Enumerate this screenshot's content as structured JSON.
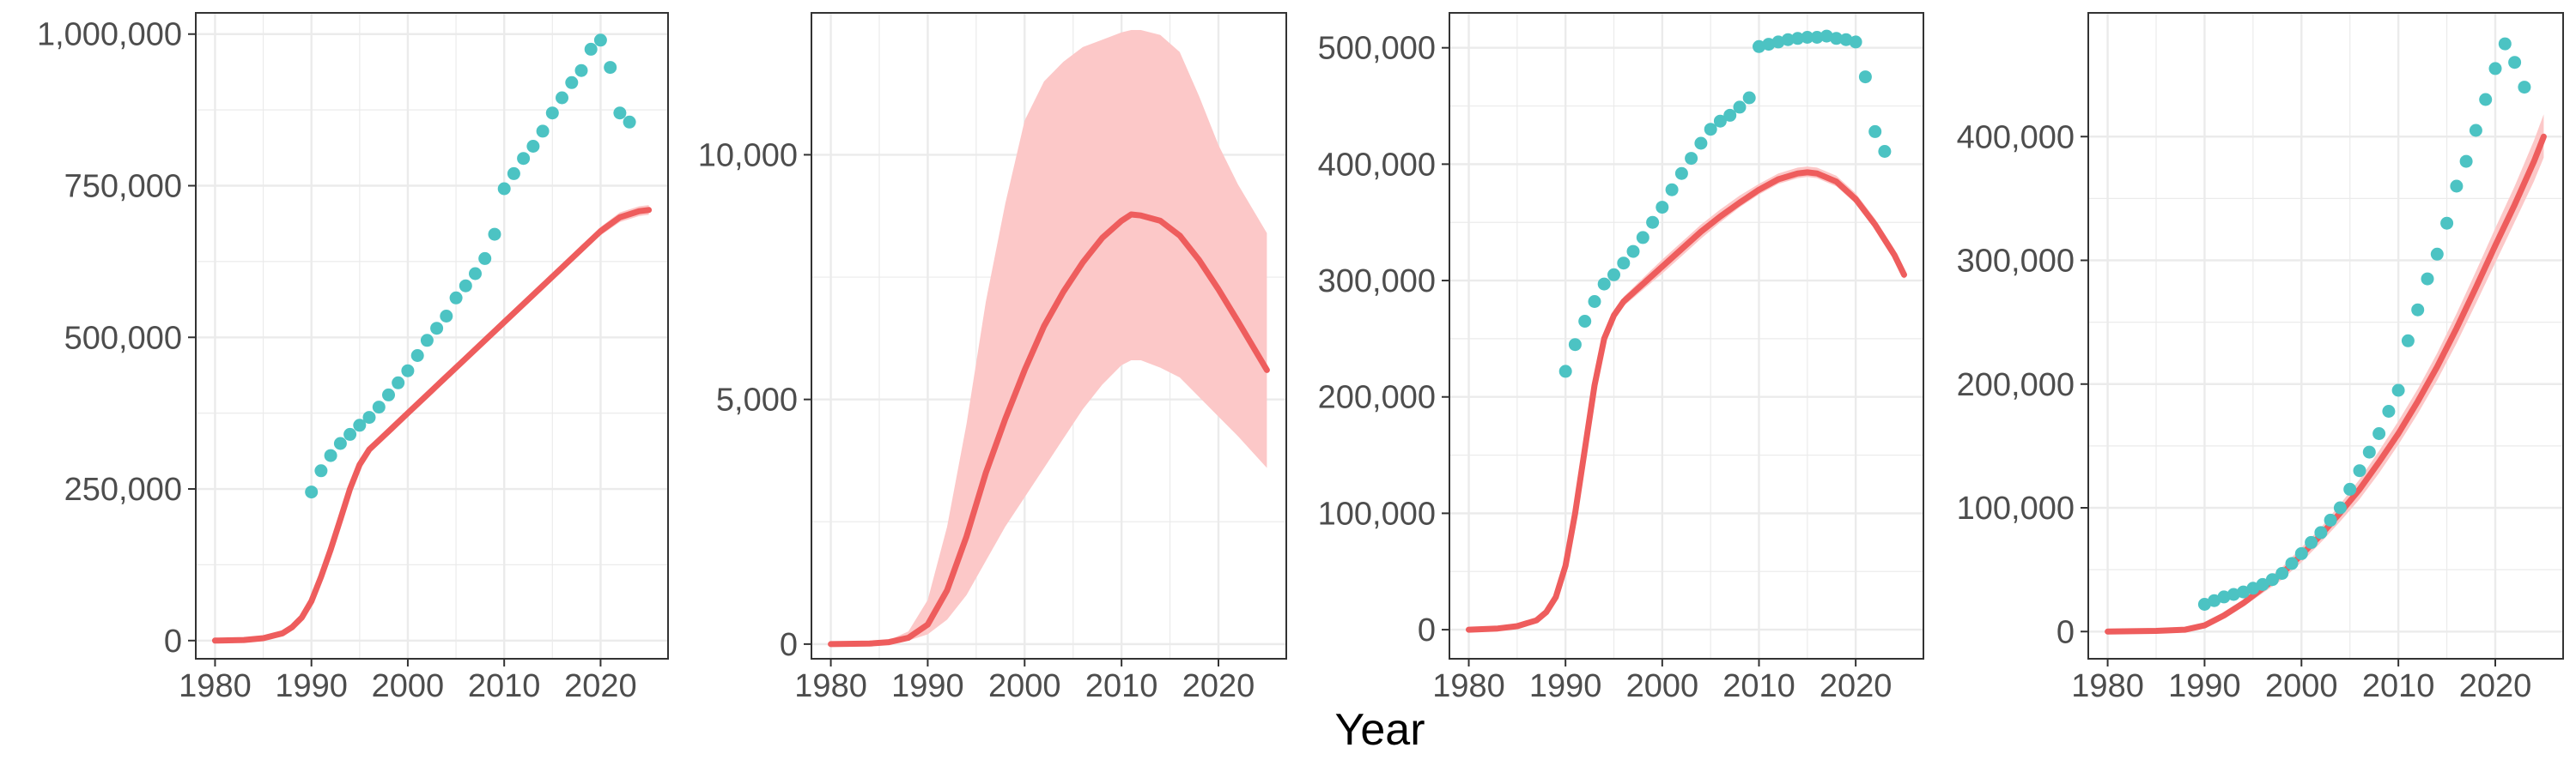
{
  "figure": {
    "xlabel": "Year",
    "colors": {
      "observed": "#4cc3c3",
      "model_line": "#ee5d5d",
      "model_band": "#fcc8c8",
      "grid": "#ebebeb",
      "frame": "#333333"
    }
  },
  "chart_data": [
    {
      "type": "line",
      "xlim": [
        1978,
        2027
      ],
      "ylim": [
        -30000,
        1035000
      ],
      "x_ticks": [
        1980,
        1990,
        2000,
        2010,
        2020
      ],
      "x_tick_labels": [
        "1980",
        "1990",
        "2000",
        "2010",
        "2020"
      ],
      "y_ticks": [
        0,
        250000,
        500000,
        750000,
        1000000
      ],
      "y_tick_labels": [
        "0",
        "250,000",
        "500,000",
        "750,000",
        "1,000,000"
      ],
      "grid": true,
      "legend": "none",
      "model": {
        "x": [
          1980,
          1983,
          1985,
          1987,
          1988,
          1989,
          1990,
          1991,
          1992,
          1993,
          1994,
          1995,
          1996,
          1997,
          1998,
          2000,
          2002,
          2004,
          2006,
          2008,
          2010,
          2012,
          2014,
          2016,
          2018,
          2020,
          2022,
          2024,
          2025
        ],
        "y": [
          0,
          1000,
          4000,
          12000,
          22000,
          38000,
          65000,
          105000,
          150000,
          200000,
          250000,
          290000,
          315000,
          330000,
          345000,
          375000,
          405000,
          435000,
          465000,
          495000,
          525000,
          555000,
          585000,
          615000,
          645000,
          675000,
          698000,
          708000,
          710000
        ],
        "lower": [
          0,
          1000,
          4000,
          12000,
          22000,
          38000,
          65000,
          105000,
          150000,
          200000,
          250000,
          290000,
          315000,
          330000,
          345000,
          375000,
          405000,
          435000,
          465000,
          495000,
          525000,
          555000,
          585000,
          615000,
          643000,
          668000,
          690000,
          700000,
          702000
        ],
        "upper": [
          0,
          1000,
          4000,
          12000,
          22000,
          38000,
          65000,
          105000,
          150000,
          200000,
          250000,
          290000,
          315000,
          330000,
          345000,
          375000,
          405000,
          435000,
          465000,
          495000,
          525000,
          555000,
          585000,
          615000,
          647000,
          682000,
          706000,
          716000,
          718000
        ]
      },
      "observed": {
        "x": [
          1990,
          1991,
          1992,
          1993,
          1994,
          1995,
          1996,
          1997,
          1998,
          1999,
          2000,
          2001,
          2002,
          2003,
          2004,
          2005,
          2006,
          2007,
          2008,
          2009,
          2010,
          2011,
          2012,
          2013,
          2014,
          2015,
          2016,
          2017,
          2018,
          2019,
          2020,
          2021,
          2022,
          2023
        ],
        "y": [
          245000,
          280000,
          305000,
          325000,
          340000,
          355000,
          368000,
          385000,
          405000,
          425000,
          445000,
          470000,
          495000,
          515000,
          535000,
          565000,
          585000,
          605000,
          630000,
          670000,
          745000,
          770000,
          795000,
          815000,
          840000,
          870000,
          895000,
          920000,
          940000,
          975000,
          990000,
          945000,
          870000,
          855000
        ]
      }
    },
    {
      "type": "line",
      "xlim": [
        1978,
        2027
      ],
      "ylim": [
        -300,
        12900
      ],
      "x_ticks": [
        1980,
        1990,
        2000,
        2010,
        2020
      ],
      "x_tick_labels": [
        "1980",
        "1990",
        "2000",
        "2010",
        "2020"
      ],
      "y_ticks": [
        0,
        5000,
        10000
      ],
      "y_tick_labels": [
        "0",
        "5,000",
        "10,000"
      ],
      "grid": true,
      "legend": "none",
      "model": {
        "x": [
          1980,
          1984,
          1986,
          1988,
          1990,
          1992,
          1994,
          1996,
          1998,
          2000,
          2002,
          2004,
          2006,
          2008,
          2010,
          2011,
          2012,
          2014,
          2016,
          2018,
          2020,
          2022,
          2025
        ],
        "y": [
          0,
          10,
          40,
          130,
          400,
          1100,
          2200,
          3500,
          4600,
          5600,
          6500,
          7200,
          7800,
          8300,
          8650,
          8780,
          8760,
          8650,
          8350,
          7850,
          7250,
          6600,
          5600
        ],
        "lower": [
          0,
          5,
          20,
          70,
          200,
          500,
          1000,
          1700,
          2400,
          3000,
          3600,
          4200,
          4800,
          5300,
          5700,
          5800,
          5800,
          5650,
          5450,
          5050,
          4650,
          4250,
          3600
        ],
        "upper": [
          0,
          20,
          80,
          260,
          900,
          2400,
          4500,
          7000,
          9000,
          10700,
          11500,
          11900,
          12200,
          12350,
          12500,
          12550,
          12550,
          12450,
          12100,
          11200,
          10200,
          9400,
          8400
        ]
      },
      "observed": {
        "x": [],
        "y": []
      }
    },
    {
      "type": "line",
      "xlim": [
        1978,
        2027
      ],
      "ylim": [
        -25000,
        530000
      ],
      "x_ticks": [
        1980,
        1990,
        2000,
        2010,
        2020
      ],
      "x_tick_labels": [
        "1980",
        "1990",
        "2000",
        "2010",
        "2020"
      ],
      "y_ticks": [
        0,
        100000,
        200000,
        300000,
        400000,
        500000
      ],
      "y_tick_labels": [
        "0",
        "100,000",
        "200,000",
        "300,000",
        "400,000",
        "500,000"
      ],
      "grid": true,
      "legend": "none",
      "model": {
        "x": [
          1980,
          1983,
          1985,
          1987,
          1988,
          1989,
          1990,
          1991,
          1992,
          1993,
          1994,
          1995,
          1996,
          1998,
          2000,
          2002,
          2004,
          2006,
          2008,
          2010,
          2012,
          2014,
          2015,
          2016,
          2018,
          2020,
          2022,
          2024,
          2025
        ],
        "y": [
          0,
          1000,
          3000,
          8000,
          15000,
          28000,
          55000,
          100000,
          155000,
          210000,
          250000,
          270000,
          282000,
          297000,
          312000,
          327000,
          342000,
          355000,
          367000,
          378000,
          387000,
          392000,
          393000,
          392000,
          385000,
          370000,
          348000,
          322000,
          305000
        ],
        "lower": [
          0,
          1000,
          3000,
          8000,
          15000,
          28000,
          55000,
          100000,
          155000,
          210000,
          250000,
          268000,
          278000,
          292000,
          306000,
          321000,
          336000,
          350000,
          363000,
          374000,
          383000,
          388000,
          389000,
          388000,
          381000,
          366000,
          344000,
          318000,
          301000
        ],
        "upper": [
          0,
          1000,
          3000,
          8000,
          15000,
          28000,
          55000,
          100000,
          155000,
          210000,
          250000,
          272000,
          286000,
          302000,
          318000,
          333000,
          348000,
          361000,
          373000,
          383000,
          392000,
          397000,
          398000,
          397000,
          390000,
          375000,
          353000,
          327000,
          310000
        ]
      },
      "observed": {
        "x": [
          1990,
          1991,
          1992,
          1993,
          1994,
          1995,
          1996,
          1997,
          1998,
          1999,
          2000,
          2001,
          2002,
          2003,
          2004,
          2005,
          2006,
          2007,
          2008,
          2009,
          2010,
          2011,
          2012,
          2013,
          2014,
          2015,
          2016,
          2017,
          2018,
          2019,
          2020,
          2021,
          2022,
          2023
        ],
        "y": [
          222000,
          245000,
          265000,
          282000,
          297000,
          305000,
          315000,
          325000,
          337000,
          350000,
          363000,
          378000,
          392000,
          405000,
          418000,
          430000,
          437000,
          442000,
          449000,
          457000,
          501000,
          503000,
          505000,
          507000,
          508000,
          509000,
          509000,
          510000,
          508000,
          507000,
          505000,
          475000,
          428000,
          411000
        ]
      }
    },
    {
      "type": "line",
      "xlim": [
        1978,
        2027
      ],
      "ylim": [
        -22000,
        500000
      ],
      "x_ticks": [
        1980,
        1990,
        2000,
        2010,
        2020
      ],
      "x_tick_labels": [
        "1980",
        "1990",
        "2000",
        "2010",
        "2020"
      ],
      "y_ticks": [
        0,
        100000,
        200000,
        300000,
        400000
      ],
      "y_tick_labels": [
        "0",
        "100,000",
        "200,000",
        "300,000",
        "400,000"
      ],
      "grid": true,
      "legend": "none",
      "model": {
        "x": [
          1980,
          1985,
          1988,
          1990,
          1992,
          1994,
          1996,
          1998,
          2000,
          2002,
          2004,
          2006,
          2008,
          2010,
          2012,
          2014,
          2016,
          2018,
          2020,
          2022,
          2024,
          2025
        ],
        "y": [
          0,
          500,
          1500,
          5000,
          13000,
          23000,
          35000,
          47000,
          62000,
          78000,
          96000,
          115000,
          137000,
          160000,
          186000,
          214000,
          245000,
          278000,
          312000,
          345000,
          380000,
          400000
        ],
        "lower": [
          0,
          500,
          1500,
          4500,
          11000,
          20000,
          31000,
          42000,
          56000,
          72000,
          89000,
          107000,
          128000,
          151000,
          176000,
          203000,
          233000,
          265000,
          298000,
          331000,
          364000,
          383000
        ],
        "upper": [
          0,
          500,
          1500,
          6000,
          15000,
          26000,
          39000,
          52000,
          68000,
          84000,
          103000,
          123000,
          146000,
          170000,
          196000,
          225000,
          257000,
          291000,
          326000,
          360000,
          397000,
          418000
        ]
      },
      "observed": {
        "x": [
          1990,
          1991,
          1992,
          1993,
          1994,
          1995,
          1996,
          1997,
          1998,
          1999,
          2000,
          2001,
          2002,
          2003,
          2004,
          2005,
          2006,
          2007,
          2008,
          2009,
          2010,
          2011,
          2012,
          2013,
          2014,
          2015,
          2016,
          2017,
          2018,
          2019,
          2020,
          2021,
          2022,
          2023
        ],
        "y": [
          22000,
          25000,
          28000,
          30000,
          32000,
          35000,
          38000,
          42000,
          47000,
          55000,
          63000,
          72000,
          80000,
          90000,
          100000,
          115000,
          130000,
          145000,
          160000,
          178000,
          195000,
          235000,
          260000,
          285000,
          305000,
          330000,
          360000,
          380000,
          405000,
          430000,
          455000,
          475000,
          460000,
          440000
        ]
      }
    }
  ]
}
